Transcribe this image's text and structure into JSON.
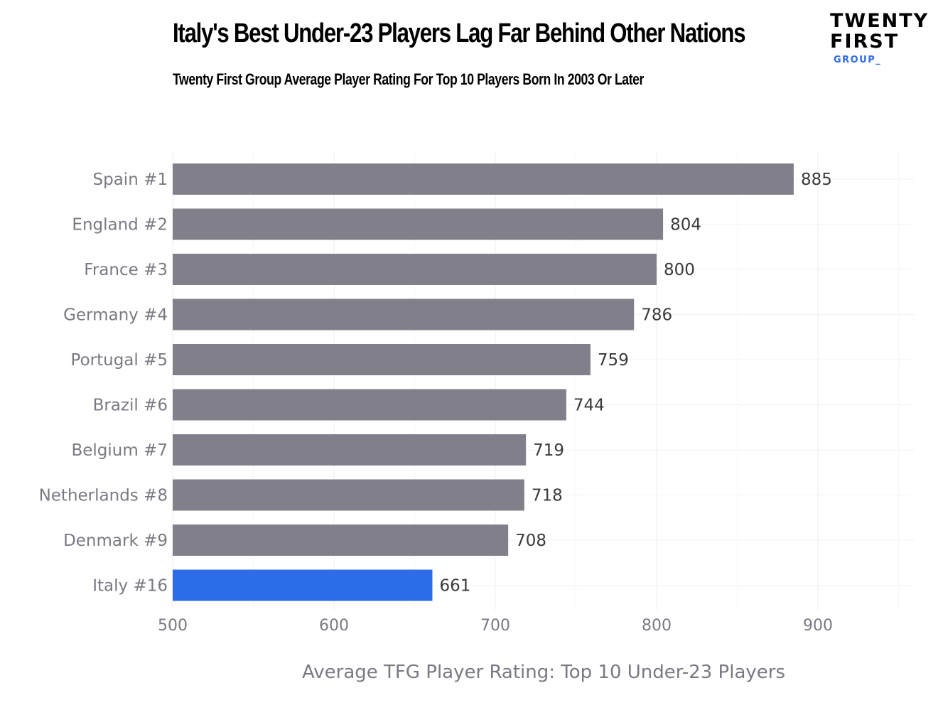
{
  "title": "Italy's Best Under-23 Players Lag Far Behind Other Nations",
  "subtitle": "Twenty First Group Average Player Rating For Top 10 Players Born In 2003 Or Later",
  "logo": {
    "line1": "TWENTY",
    "line2": "FIRST",
    "line3": "GROUP_"
  },
  "chart_data": {
    "type": "bar",
    "orientation": "horizontal",
    "categories": [
      "Spain #1",
      "England #2",
      "France #3",
      "Germany #4",
      "Portugal #5",
      "Brazil #6",
      "Belgium #7",
      "Netherlands #8",
      "Denmark #9",
      "Italy #16"
    ],
    "values": [
      885,
      804,
      800,
      786,
      759,
      744,
      719,
      718,
      708,
      661
    ],
    "xlabel": "Average TFG Player Rating: Top 10 Under-23 Players",
    "ylabel": "",
    "xlim": [
      500,
      960
    ],
    "xticks": [
      500,
      600,
      700,
      800,
      900
    ],
    "grid": true,
    "colors": {
      "default": "#81808a",
      "highlight": "#2d6ce8"
    },
    "highlight": "Italy #16"
  }
}
